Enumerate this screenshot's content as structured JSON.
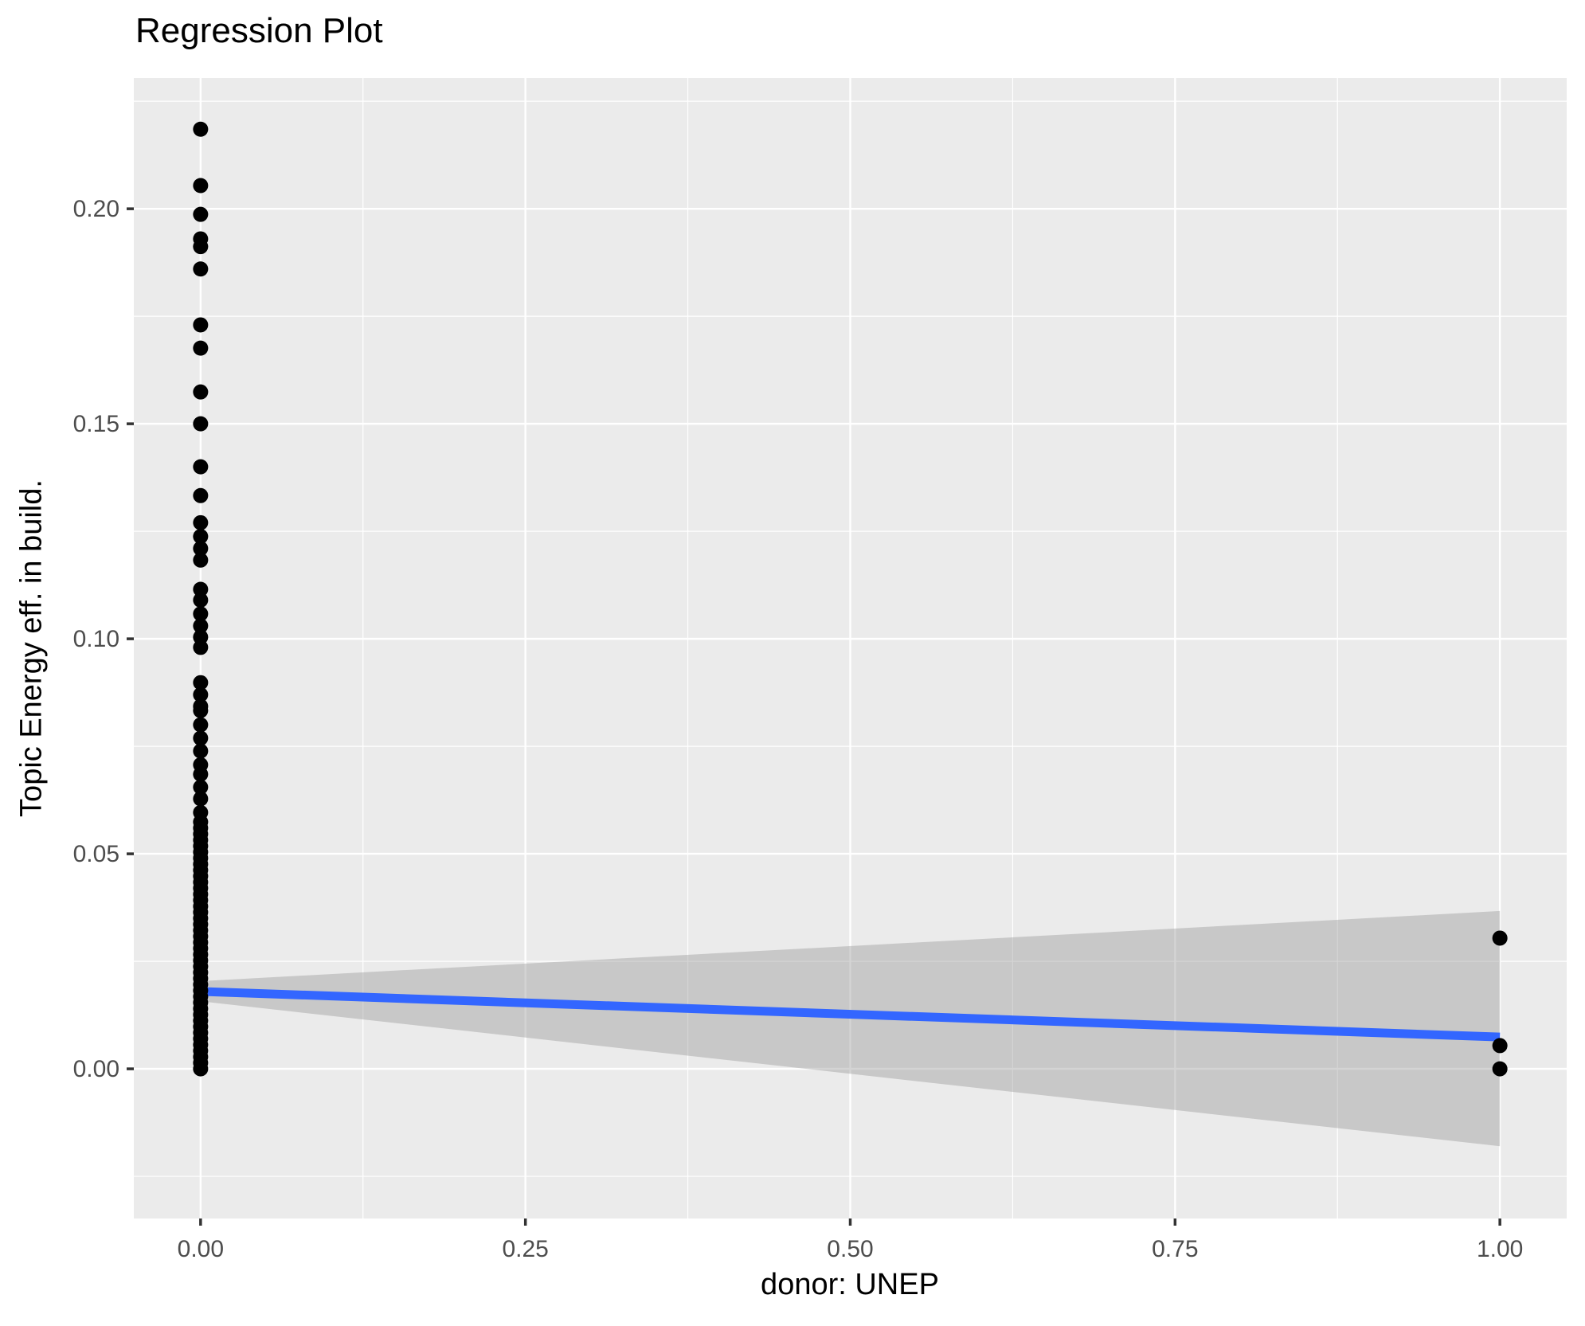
{
  "title": "Regression Plot",
  "chart_data": {
    "type": "scatter",
    "title": "Regression Plot",
    "xlabel": "donor: UNEP",
    "ylabel": "Topic Energy eff. in build.",
    "legend": "none",
    "grid": true,
    "xlim": [
      -0.0514,
      1.0514
    ],
    "ylim": [
      -0.0348,
      0.2304
    ],
    "x_ticks": [
      0,
      0.25,
      0.5,
      0.75,
      1.0
    ],
    "x_tick_labels": [
      "0.00",
      "0.25",
      "0.50",
      "0.75",
      "1.00"
    ],
    "y_ticks": [
      0,
      0.05,
      0.1,
      0.15,
      0.2
    ],
    "y_tick_labels": [
      "0.00",
      "0.05",
      "0.10",
      "0.15",
      "0.20"
    ],
    "x_minor_gridlines": [
      0.125,
      0.375,
      0.625,
      0.875
    ],
    "y_minor_gridlines": [
      -0.025,
      0.025,
      0.075,
      0.125,
      0.175,
      0.225
    ],
    "series": [
      {
        "name": "donor-0-points",
        "x": 0,
        "y": [
          0.2185,
          0.2054,
          0.1987,
          0.193,
          0.1912,
          0.186,
          0.173,
          0.1676,
          0.1574,
          0.15,
          0.14,
          0.1333,
          0.127,
          0.1238,
          0.121,
          0.1183,
          0.1115,
          0.109,
          0.1058,
          0.103,
          0.1004,
          0.098,
          0.0898,
          0.087,
          0.0843,
          0.0833,
          0.08,
          0.0769,
          0.0739,
          0.0707,
          0.0685,
          0.0655,
          0.0628,
          0.0596,
          0.0574,
          0.056,
          0.0546,
          0.0532,
          0.0518,
          0.0504,
          0.049,
          0.0476,
          0.0462,
          0.0448,
          0.0434,
          0.042,
          0.0406,
          0.0392,
          0.0378,
          0.0364,
          0.035,
          0.0336,
          0.0322,
          0.0308,
          0.0294,
          0.028,
          0.0266,
          0.0252,
          0.0238,
          0.0224,
          0.021,
          0.0196,
          0.0182,
          0.0168,
          0.0154,
          0.014,
          0.0126,
          0.0112,
          0.0098,
          0.0084,
          0.007,
          0.0056,
          0.0042,
          0.0028,
          0.0014,
          0.0
        ]
      },
      {
        "name": "donor-1-points",
        "x": 1,
        "y": [
          0.0304,
          0.0054,
          0.0
        ]
      }
    ],
    "regression_line": {
      "x": [
        0,
        1
      ],
      "y": [
        0.018,
        0.0074
      ],
      "color": "#3366FF"
    },
    "confidence_band": {
      "x": [
        0,
        1
      ],
      "upper": [
        0.0204,
        0.0367
      ],
      "lower": [
        0.0157,
        -0.018
      ],
      "color": "#999999",
      "opacity": 0.42
    },
    "colors": {
      "panel_background": "#EBEBEB",
      "gridline": "#FFFFFF",
      "point": "#000000",
      "tick_label": "#4D4D4D",
      "tick_mark": "#333333",
      "text": "#000000"
    }
  }
}
